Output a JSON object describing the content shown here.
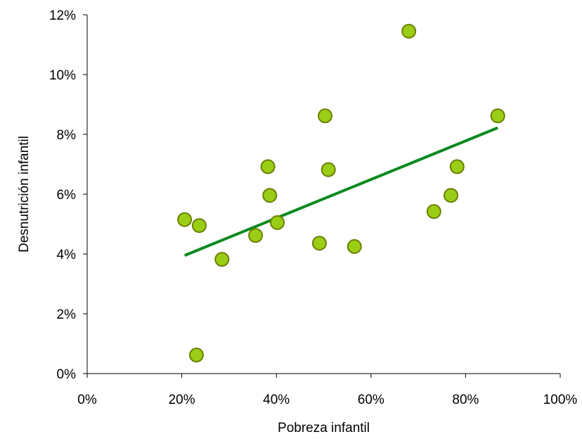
{
  "chart_data": {
    "type": "scatter",
    "title": "",
    "xlabel": "Pobreza infantil",
    "ylabel": "Desnutrición infantil",
    "xlim": [
      0,
      100
    ],
    "ylim": [
      0,
      12
    ],
    "x_ticks": [
      "0%",
      "20%",
      "40%",
      "60%",
      "80%",
      "100%"
    ],
    "y_ticks": [
      "0%",
      "2%",
      "4%",
      "6%",
      "8%",
      "10%",
      "12%"
    ],
    "grid": false,
    "legend": "none",
    "series": [
      {
        "points": [
          {
            "x": 20.6,
            "y": 5.15
          },
          {
            "x": 23.7,
            "y": 4.95
          },
          {
            "x": 23.1,
            "y": 0.62
          },
          {
            "x": 28.5,
            "y": 3.82
          },
          {
            "x": 35.6,
            "y": 4.62
          },
          {
            "x": 38.2,
            "y": 6.92
          },
          {
            "x": 38.6,
            "y": 5.96
          },
          {
            "x": 40.2,
            "y": 5.05
          },
          {
            "x": 49.1,
            "y": 4.36
          },
          {
            "x": 50.3,
            "y": 8.62
          },
          {
            "x": 51.0,
            "y": 6.82
          },
          {
            "x": 56.5,
            "y": 4.25
          },
          {
            "x": 68.0,
            "y": 11.45
          },
          {
            "x": 73.3,
            "y": 5.42
          },
          {
            "x": 76.9,
            "y": 5.96
          },
          {
            "x": 78.2,
            "y": 6.92
          },
          {
            "x": 86.8,
            "y": 8.62
          }
        ]
      }
    ],
    "trendline": {
      "x": [
        20.6,
        86.8
      ],
      "y": [
        3.95,
        8.22
      ]
    },
    "colors": {
      "marker_fill": "#9acd15",
      "marker_stroke": "#6b7f00",
      "trendline": "#0a8a1e",
      "axis": "#000000"
    }
  }
}
